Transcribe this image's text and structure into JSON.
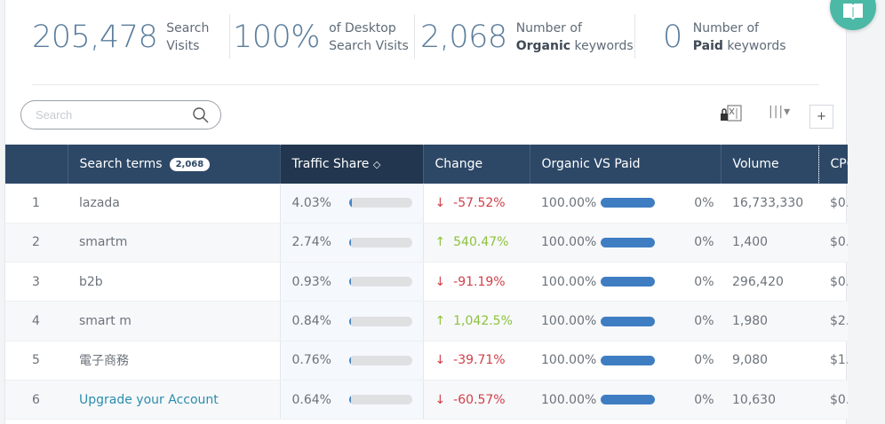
{
  "stats": [
    {
      "value": "205,478",
      "line1": "Search",
      "line2": "Visits"
    },
    {
      "value": "100%",
      "line1": "of Desktop",
      "line2": "Search Visits"
    },
    {
      "value": "2,068",
      "line1": "Number of",
      "bold": "Organic",
      "rest": " keywords"
    },
    {
      "value": "0",
      "line1": "Number of",
      "bold": "Paid",
      "rest": " keywords"
    }
  ],
  "search": {
    "placeholder": "Search"
  },
  "toolbar": {
    "plus_label": "+",
    "columns_label": "|||▾"
  },
  "table": {
    "headers": {
      "terms": "Search terms",
      "terms_count": "2,068",
      "traffic": "Traffic Share",
      "change": "Change",
      "ovp": "Organic VS Paid",
      "volume": "Volume",
      "cpc": "CPC"
    },
    "rows": [
      {
        "idx": "1",
        "term": "lazada",
        "share": "4.03%",
        "share_frac": 0.0403,
        "dir": "down",
        "change": "-57.52%",
        "organic": "100.00%",
        "organic_frac": 1,
        "paid": "0%",
        "volume": "16,733,330",
        "cpc": "$0."
      },
      {
        "idx": "2",
        "term": "smartm",
        "share": "2.74%",
        "share_frac": 0.0274,
        "dir": "up",
        "change": "540.47%",
        "organic": "100.00%",
        "organic_frac": 1,
        "paid": "0%",
        "volume": "1,400",
        "cpc": "$0."
      },
      {
        "idx": "3",
        "term": "b2b",
        "share": "0.93%",
        "share_frac": 0.0093,
        "dir": "down",
        "change": "-91.19%",
        "organic": "100.00%",
        "organic_frac": 1,
        "paid": "0%",
        "volume": "296,420",
        "cpc": "$0."
      },
      {
        "idx": "4",
        "term": "smart m",
        "share": "0.84%",
        "share_frac": 0.0084,
        "dir": "up",
        "change": "1,042.5%",
        "organic": "100.00%",
        "organic_frac": 1,
        "paid": "0%",
        "volume": "1,980",
        "cpc": "$2."
      },
      {
        "idx": "5",
        "term": "電子商務",
        "share": "0.76%",
        "share_frac": 0.0076,
        "dir": "down",
        "change": "-39.71%",
        "organic": "100.00%",
        "organic_frac": 1,
        "paid": "0%",
        "volume": "9,080",
        "cpc": "$1."
      },
      {
        "idx": "6",
        "term": "Upgrade your Account",
        "link": true,
        "share": "0.64%",
        "share_frac": 0.0064,
        "dir": "down",
        "change": "-60.57%",
        "organic": "100.00%",
        "organic_frac": 1,
        "paid": "0%",
        "volume": "10,630",
        "cpc": "$0."
      }
    ]
  },
  "colors": {
    "header": "#2d4867",
    "accent": "#4cb8a6",
    "down": "#d0404a",
    "up": "#8cc23c"
  }
}
